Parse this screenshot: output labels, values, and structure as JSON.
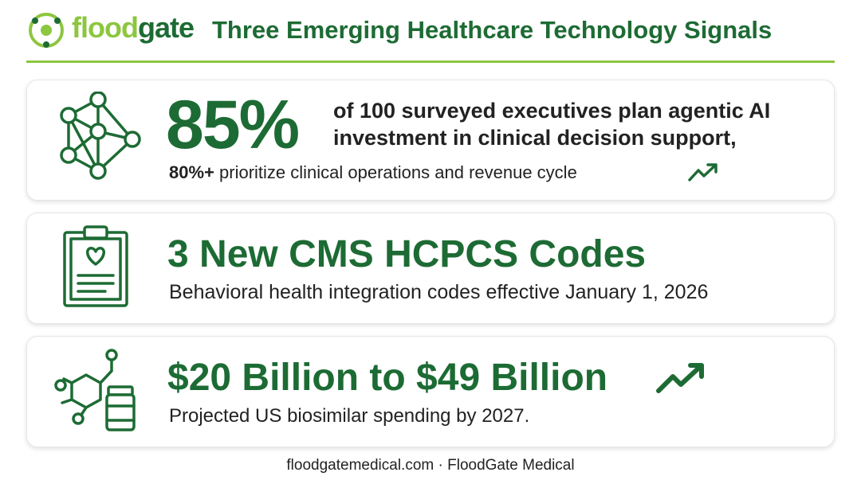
{
  "header": {
    "logo_part_1": "flood",
    "logo_part_2": "gate",
    "title": "Three Emerging Healthcare Technology Signals"
  },
  "cards": [
    {
      "headline": "85%",
      "text_line_1": "of 100 surveyed executives plan agentic AI",
      "text_line_2": "investment in clinical decision support,",
      "detail_bold": "80%+",
      "detail": "prioritize clinical operations and revenue cycle"
    },
    {
      "headline": "3 New CMS HCPCS Codes",
      "detail": "Behavioral health integration codes effective January 1, 2026"
    },
    {
      "headline": "$20 Billion to $49 Billion",
      "detail": "Projected US biosimilar spending by 2027."
    }
  ],
  "footer": "floodgatemedical.com · FloodGate Medical"
}
